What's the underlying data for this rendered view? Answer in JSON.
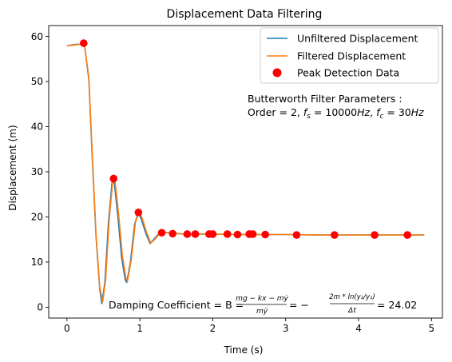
{
  "chart_data": {
    "type": "line",
    "title": "Displacement Data Filtering",
    "xlabel": "Time (s)",
    "ylabel": "Displacement (m)",
    "xlim": [
      -0.25,
      5.15
    ],
    "ylim": [
      -2.4,
      62.4
    ],
    "xticks": [
      0,
      1,
      2,
      3,
      4,
      5
    ],
    "yticks": [
      0,
      10,
      20,
      30,
      40,
      50,
      60
    ],
    "grid": false,
    "legend_position": "top-right",
    "legend": [
      "Unfiltered Displacement",
      "Filtered Displacement",
      "Peak Detection Data"
    ],
    "series": [
      {
        "name": "Unfiltered Displacement",
        "color": "#1f77b4",
        "x": [
          0,
          0.1,
          0.2,
          0.24,
          0.3,
          0.35,
          0.4,
          0.45,
          0.48,
          0.52,
          0.57,
          0.62,
          0.65,
          0.7,
          0.75,
          0.8,
          0.82,
          0.87,
          0.93,
          0.98,
          1.02,
          1.08,
          1.14,
          1.2,
          1.27,
          1.33,
          1.45,
          1.6,
          1.9,
          2.5,
          3.0,
          3.5,
          4.0,
          4.5,
          4.9
        ],
        "y": [
          57.9,
          58.2,
          58.3,
          58.2,
          50.5,
          32,
          15.5,
          4,
          0.8,
          5.5,
          19,
          27.8,
          27.5,
          20,
          11,
          6,
          5.5,
          10,
          18.5,
          21,
          19.5,
          16.5,
          14.1,
          15.2,
          16.5,
          16.6,
          16.4,
          16.2,
          16.2,
          16.1,
          16.1,
          16,
          16,
          16,
          16
        ]
      },
      {
        "name": "Filtered Displacement",
        "color": "#ff7f0e",
        "x": [
          0,
          0.1,
          0.2,
          0.24,
          0.3,
          0.35,
          0.4,
          0.45,
          0.49,
          0.53,
          0.58,
          0.63,
          0.66,
          0.71,
          0.76,
          0.81,
          0.83,
          0.88,
          0.94,
          0.99,
          1.03,
          1.09,
          1.15,
          1.21,
          1.28,
          1.34,
          1.46,
          1.6,
          1.9,
          2.5,
          3.0,
          3.5,
          4.0,
          4.5,
          4.9
        ],
        "y": [
          57.9,
          58.1,
          58.3,
          58.2,
          51,
          33,
          16,
          4.5,
          1.2,
          6,
          19.5,
          28.2,
          27.8,
          20.5,
          11.5,
          6.3,
          5.8,
          10.3,
          18.8,
          21.2,
          19.8,
          16.7,
          14.2,
          15.1,
          16.5,
          16.6,
          16.4,
          16.2,
          16.2,
          16.1,
          16.1,
          16,
          16,
          16,
          16
        ]
      },
      {
        "name": "Peak Detection Data",
        "type": "scatter",
        "color": "#ff0000",
        "x": [
          0.23,
          0.64,
          0.98,
          1.3,
          1.45,
          1.65,
          1.76,
          1.95,
          2.0,
          2.2,
          2.34,
          2.5,
          2.55,
          2.72,
          3.15,
          3.67,
          4.22,
          4.67
        ],
        "y": [
          58.5,
          28.5,
          21.0,
          16.5,
          16.3,
          16.2,
          16.2,
          16.2,
          16.2,
          16.2,
          16.1,
          16.2,
          16.2,
          16.1,
          16.0,
          16.0,
          16.0,
          16.0
        ]
      }
    ],
    "annotations": [
      {
        "text": "Butterworth Filter Parameters :",
        "position": "upper-right"
      },
      {
        "text": "Order = 2, f_s = 10000Hz, f_c = 30Hz",
        "position": "upper-right"
      },
      {
        "text": "Damping Coefficient = B = (mg − kx − mẏ)/(mÿ) = − (2m * ln(y2/y1))/(Δt) = 24.02",
        "position": "bottom"
      }
    ]
  }
}
